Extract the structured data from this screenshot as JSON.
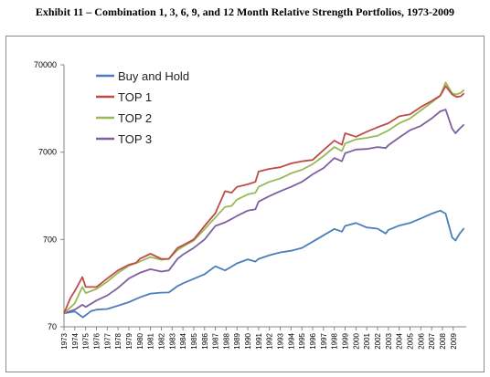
{
  "header": {
    "title": "Exhibit 11 – Combination 1, 3, 6, 9, and 12 Month Relative Strength Portfolios, 1973-2009"
  },
  "chart_data": {
    "type": "line",
    "title": "",
    "xlabel": "",
    "ylabel": "",
    "y_scale": "log",
    "ylim": [
      70,
      70000
    ],
    "y_ticks": [
      "70000",
      "7000",
      "700",
      "70"
    ],
    "x_ticks": [
      "1973",
      "1974",
      "1975",
      "1976",
      "1977",
      "1978",
      "1979",
      "1980",
      "1981",
      "1982",
      "1983",
      "1984",
      "1985",
      "1986",
      "1987",
      "1988",
      "1989",
      "1990",
      "1991",
      "1992",
      "1993",
      "1994",
      "1995",
      "1996",
      "1997",
      "1998",
      "1999",
      "2000",
      "2001",
      "2002",
      "2003",
      "2004",
      "2005",
      "2006",
      "2007",
      "2008",
      "2009"
    ],
    "xlim": [
      1973,
      2010.2
    ],
    "grid": false,
    "legend_position": "top-left",
    "series": [
      {
        "name": "Buy and Hold",
        "color": "#4a7ebb",
        "x": [
          1973,
          1974,
          1974.75,
          1975.5,
          1976,
          1977,
          1978,
          1979,
          1980,
          1981,
          1982,
          1982.7,
          1983.5,
          1984,
          1985,
          1986,
          1987,
          1987.9,
          1988.5,
          1989,
          1990,
          1990.7,
          1991,
          1992,
          1993,
          1994,
          1995,
          1996,
          1997,
          1998,
          1998.7,
          1999,
          2000,
          2001,
          2002,
          2002.75,
          2003,
          2004,
          2005,
          2006,
          2007,
          2007.8,
          2008.3,
          2008.9,
          2009.2,
          2009.6,
          2010
        ],
        "y": [
          100,
          105,
          90,
          106,
          110,
          112,
          122,
          134,
          152,
          168,
          172,
          173,
          205,
          220,
          248,
          280,
          345,
          310,
          342,
          373,
          415,
          390,
          420,
          462,
          498,
          520,
          560,
          660,
          780,
          925,
          860,
          1000,
          1080,
          960,
          930,
          820,
          900,
          1010,
          1080,
          1220,
          1380,
          1500,
          1380,
          740,
          680,
          820,
          940
        ]
      },
      {
        "name": "TOP 1",
        "color": "#be4b48",
        "x": [
          1973,
          1973.6,
          1974,
          1974.7,
          1975,
          1976,
          1977,
          1978,
          1979,
          1979.7,
          1980,
          1981,
          1982,
          1982.7,
          1983.5,
          1984,
          1985,
          1986,
          1987,
          1987.9,
          1988.5,
          1989,
          1990,
          1990.7,
          1991,
          1992,
          1993,
          1994,
          1995,
          1996,
          1997,
          1998,
          1998.7,
          1999,
          2000,
          2001,
          2002,
          2003,
          2004,
          2005,
          2006,
          2007,
          2007.8,
          2008.3,
          2008.9,
          2009.3,
          2009.7,
          2010
        ],
        "y": [
          100,
          150,
          180,
          260,
          200,
          200,
          250,
          310,
          360,
          380,
          420,
          480,
          420,
          420,
          560,
          600,
          700,
          1000,
          1400,
          2500,
          2400,
          2800,
          3000,
          3200,
          4200,
          4500,
          4700,
          5200,
          5500,
          5700,
          7400,
          9500,
          8500,
          11500,
          10500,
          12000,
          13500,
          15000,
          18000,
          19000,
          23000,
          27000,
          31000,
          40000,
          32000,
          30000,
          30500,
          33000
        ]
      },
      {
        "name": "TOP 2",
        "color": "#98b954",
        "x": [
          1973,
          1974,
          1974.7,
          1975,
          1976,
          1977,
          1978,
          1979,
          1980,
          1981,
          1982,
          1982.7,
          1983.5,
          1984,
          1985,
          1986,
          1987,
          1987.9,
          1988.5,
          1989,
          1990,
          1990.7,
          1991,
          1992,
          1993,
          1994,
          1995,
          1996,
          1997,
          1998,
          1998.7,
          1999,
          2000,
          2001,
          2002,
          2003,
          2004,
          2005,
          2006,
          2007,
          2007.8,
          2008.3,
          2008.9,
          2009.3,
          2009.7,
          2010
        ],
        "y": [
          100,
          130,
          200,
          170,
          190,
          230,
          290,
          350,
          390,
          440,
          410,
          420,
          530,
          580,
          680,
          920,
          1250,
          1650,
          1700,
          2000,
          2300,
          2400,
          2800,
          3200,
          3500,
          4000,
          4400,
          5100,
          6300,
          8000,
          7200,
          8800,
          9800,
          10200,
          10800,
          12400,
          15000,
          17000,
          21000,
          26000,
          31000,
          44000,
          33000,
          32000,
          33500,
          36000
        ]
      },
      {
        "name": "TOP 3",
        "color": "#7d60a0",
        "x": [
          1973,
          1974,
          1974.7,
          1975,
          1976,
          1977,
          1978,
          1979,
          1980,
          1981,
          1982,
          1982.7,
          1983.5,
          1984,
          1985,
          1986,
          1987,
          1987.9,
          1988.5,
          1989,
          1990,
          1990.7,
          1991,
          1992,
          1993,
          1994,
          1995,
          1996,
          1997,
          1998,
          1998.7,
          1999,
          2000,
          2001,
          2002,
          2002.75,
          2003,
          2004,
          2005,
          2006,
          2007,
          2007.8,
          2008.3,
          2008.9,
          2009.2,
          2009.6,
          2010
        ],
        "y": [
          100,
          110,
          125,
          118,
          140,
          160,
          195,
          250,
          290,
          320,
          300,
          310,
          420,
          470,
          560,
          700,
          1000,
          1100,
          1200,
          1300,
          1500,
          1550,
          1900,
          2200,
          2500,
          2800,
          3200,
          3900,
          4600,
          6000,
          5500,
          6800,
          7500,
          7600,
          8000,
          7800,
          8400,
          10300,
          12500,
          14000,
          17000,
          20500,
          21500,
          13000,
          11500,
          13000,
          14500
        ]
      }
    ]
  }
}
